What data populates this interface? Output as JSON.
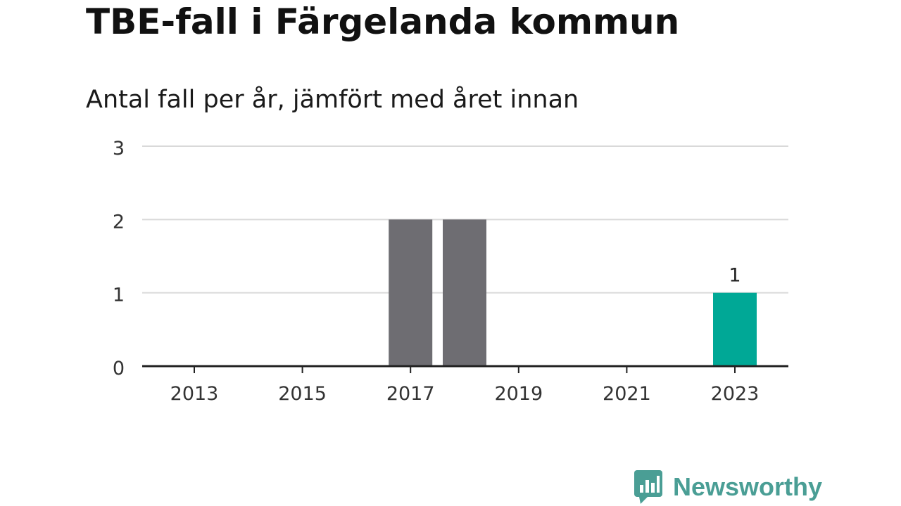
{
  "header": {
    "title": "TBE-fall i Färgelanda kommun",
    "subtitle": "Antal fall per år, jämfört med året innan"
  },
  "brand": {
    "name": "Newsworthy",
    "logo_icon": "bar-chart-speech-bubble-icon"
  },
  "colors": {
    "bar": "#6e6d72",
    "highlight": "#00a896",
    "grid": "#d9d9d9",
    "axis": "#222222",
    "brand": "#4a9e95"
  },
  "chart_data": {
    "type": "bar",
    "x": [
      2013,
      2014,
      2015,
      2016,
      2017,
      2018,
      2019,
      2020,
      2021,
      2022,
      2023
    ],
    "values": [
      0,
      0,
      0,
      0,
      2,
      2,
      0,
      0,
      0,
      0,
      1
    ],
    "highlight_index": 10,
    "data_labels": [
      {
        "index": 10,
        "text": "1"
      }
    ],
    "x_ticks": [
      "2013",
      "2015",
      "2017",
      "2019",
      "2021",
      "2023"
    ],
    "y_ticks": [
      "0",
      "1",
      "2",
      "3"
    ],
    "ylim": [
      0,
      3
    ],
    "grid": true
  }
}
